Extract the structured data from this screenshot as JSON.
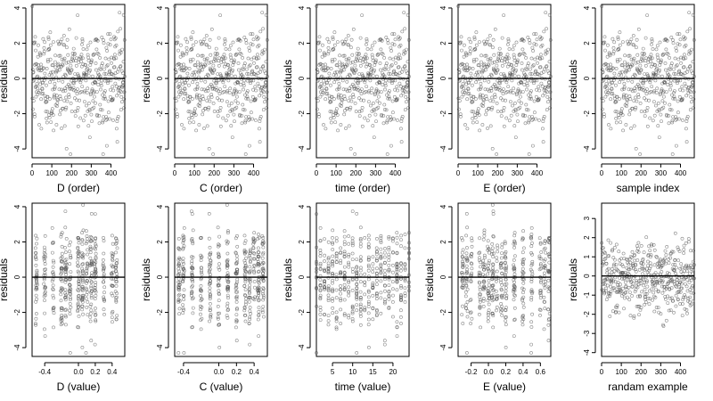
{
  "chart_data": [
    {
      "type": "scatter",
      "xlabel": "D (order)",
      "ylabel": "residuals",
      "xlim": [
        0,
        470
      ],
      "ylim": [
        -4.5,
        4.2
      ],
      "x_ticks": [
        0,
        100,
        200,
        300,
        400
      ],
      "y_ticks": [
        -4,
        -2,
        0,
        2,
        4
      ],
      "x_tick_labels": [
        "0",
        "100",
        "200",
        "300",
        "400"
      ],
      "y_tick_labels": [
        "-4",
        "-2",
        "0",
        "2",
        "4"
      ],
      "reference_line_y": 0,
      "grid": false,
      "point_count": 470
    },
    {
      "type": "scatter",
      "xlabel": "C (order)",
      "ylabel": "residuals",
      "xlim": [
        0,
        470
      ],
      "ylim": [
        -4.5,
        4.2
      ],
      "x_ticks": [
        0,
        100,
        200,
        300,
        400
      ],
      "y_ticks": [
        -4,
        -2,
        0,
        2,
        4
      ],
      "x_tick_labels": [
        "0",
        "100",
        "200",
        "300",
        "400"
      ],
      "y_tick_labels": [
        "-4",
        "-2",
        "0",
        "2",
        "4"
      ],
      "reference_line_y": 0,
      "grid": false,
      "point_count": 470
    },
    {
      "type": "scatter",
      "xlabel": "time (order)",
      "ylabel": "residuals",
      "xlim": [
        0,
        470
      ],
      "ylim": [
        -4.5,
        4.2
      ],
      "x_ticks": [
        0,
        100,
        200,
        300,
        400
      ],
      "y_ticks": [
        -4,
        -2,
        0,
        2,
        4
      ],
      "x_tick_labels": [
        "0",
        "100",
        "200",
        "300",
        "400"
      ],
      "y_tick_labels": [
        "-4",
        "-2",
        "0",
        "2",
        "4"
      ],
      "reference_line_y": 0,
      "grid": false,
      "point_count": 470
    },
    {
      "type": "scatter",
      "xlabel": "E (order)",
      "ylabel": "residuals",
      "xlim": [
        0,
        470
      ],
      "ylim": [
        -4.5,
        4.2
      ],
      "x_ticks": [
        0,
        100,
        200,
        300,
        400
      ],
      "y_ticks": [
        -4,
        -2,
        0,
        2,
        4
      ],
      "x_tick_labels": [
        "0",
        "100",
        "200",
        "300",
        "400"
      ],
      "y_tick_labels": [
        "-4",
        "-2",
        "0",
        "2",
        "4"
      ],
      "reference_line_y": 0,
      "grid": false,
      "point_count": 470
    },
    {
      "type": "scatter",
      "xlabel": "sample index",
      "ylabel": "residuals",
      "xlim": [
        0,
        470
      ],
      "ylim": [
        -4.5,
        4.2
      ],
      "x_ticks": [
        0,
        100,
        200,
        300,
        400
      ],
      "y_ticks": [
        -4,
        -2,
        0,
        2,
        4
      ],
      "x_tick_labels": [
        "0",
        "100",
        "200",
        "300",
        "400"
      ],
      "y_tick_labels": [
        "-4",
        "-2",
        "0",
        "2",
        "4"
      ],
      "reference_line_y": 0,
      "grid": false,
      "point_count": 470
    },
    {
      "type": "scatter",
      "xlabel": "D (value)",
      "ylabel": "residuals",
      "xlim": [
        -0.55,
        0.55
      ],
      "ylim": [
        -4.5,
        4.2
      ],
      "x_ticks": [
        -0.4,
        0,
        0.2,
        0.4
      ],
      "y_ticks": [
        -4,
        -2,
        0,
        2,
        4
      ],
      "x_tick_labels": [
        "-0.4",
        "0.0",
        "0.2",
        "0.4"
      ],
      "y_tick_labels": [
        "-4",
        "-2",
        "0",
        "2",
        "4"
      ],
      "reference_line_y": 0,
      "grid": false,
      "point_count": 470
    },
    {
      "type": "scatter",
      "xlabel": "C (value)",
      "ylabel": "residuals",
      "xlim": [
        -0.5,
        0.55
      ],
      "ylim": [
        -4.5,
        4.2
      ],
      "x_ticks": [
        -0.4,
        0,
        0.2,
        0.4
      ],
      "y_ticks": [
        -4,
        -2,
        0,
        2,
        4
      ],
      "x_tick_labels": [
        "-0.4",
        "0.0",
        "0.2",
        "0.4"
      ],
      "y_tick_labels": [
        "-4",
        "-2",
        "0",
        "2",
        "4"
      ],
      "reference_line_y": 0,
      "grid": false,
      "point_count": 470
    },
    {
      "type": "scatter",
      "xlabel": "time (value)",
      "ylabel": "residuals",
      "xlim": [
        1,
        24
      ],
      "ylim": [
        -4.5,
        4.2
      ],
      "x_ticks": [
        5,
        10,
        15,
        20
      ],
      "y_ticks": [
        -4,
        -2,
        0,
        2,
        4
      ],
      "x_tick_labels": [
        "5",
        "10",
        "15",
        "20"
      ],
      "y_tick_labels": [
        "-4",
        "-2",
        "0",
        "2",
        "4"
      ],
      "reference_line_y": 0,
      "grid": false,
      "point_count": 470
    },
    {
      "type": "scatter",
      "xlabel": "E (value)",
      "ylabel": "residuals",
      "xlim": [
        -0.35,
        0.72
      ],
      "ylim": [
        -4.5,
        4.2
      ],
      "x_ticks": [
        -0.2,
        0,
        0.2,
        0.4,
        0.6
      ],
      "y_ticks": [
        -4,
        -2,
        0,
        2,
        4
      ],
      "x_tick_labels": [
        "-0.2",
        "0.0",
        "0.2",
        "0.4",
        "0.6"
      ],
      "y_tick_labels": [
        "-4",
        "-2",
        "0",
        "2",
        "4"
      ],
      "reference_line_y": 0,
      "grid": false,
      "point_count": 470
    },
    {
      "type": "scatter",
      "xlabel": "randam example",
      "ylabel": "residuals",
      "xlim": [
        0,
        470
      ],
      "ylim": [
        -4.2,
        3.8
      ],
      "x_ticks": [
        0,
        100,
        200,
        300,
        400
      ],
      "y_ticks": [
        -4,
        -3,
        -2,
        -1,
        0,
        1,
        2,
        3
      ],
      "x_tick_labels": [
        "0",
        "100",
        "200",
        "300",
        "400"
      ],
      "y_tick_labels": [
        "-4",
        "-3",
        "-2",
        "-1",
        "0",
        "1",
        "2",
        "3"
      ],
      "reference_line_y": 0,
      "grid": false,
      "point_count": 470
    }
  ]
}
